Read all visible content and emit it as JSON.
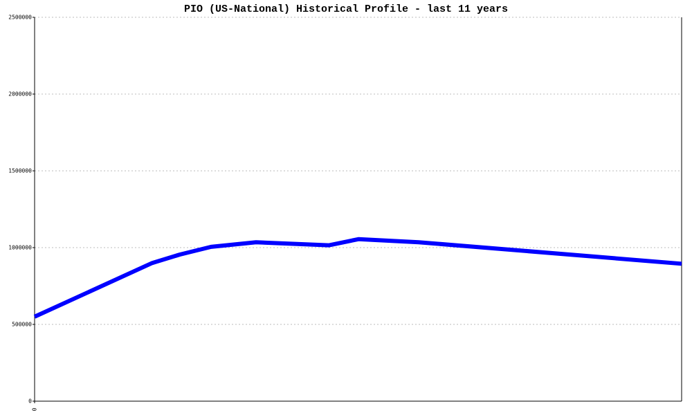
{
  "chart_data": {
    "type": "line",
    "title": "PIO (US-National) Historical Profile - last 11 years",
    "x": [
      0,
      170,
      210,
      255,
      320,
      425,
      468,
      555,
      935
    ],
    "series": [
      {
        "color": "#0000ff",
        "values": [
          550000,
          900000,
          955000,
          1005000,
          1035000,
          1015000,
          1055000,
          1035000,
          895000
        ]
      }
    ],
    "xlim": [
      0,
      935
    ],
    "xticks": [
      0
    ],
    "ylim": [
      0,
      2500000
    ],
    "yticks": [
      0,
      500000,
      1000000,
      1500000,
      2000000,
      2500000
    ],
    "grid": true
  }
}
